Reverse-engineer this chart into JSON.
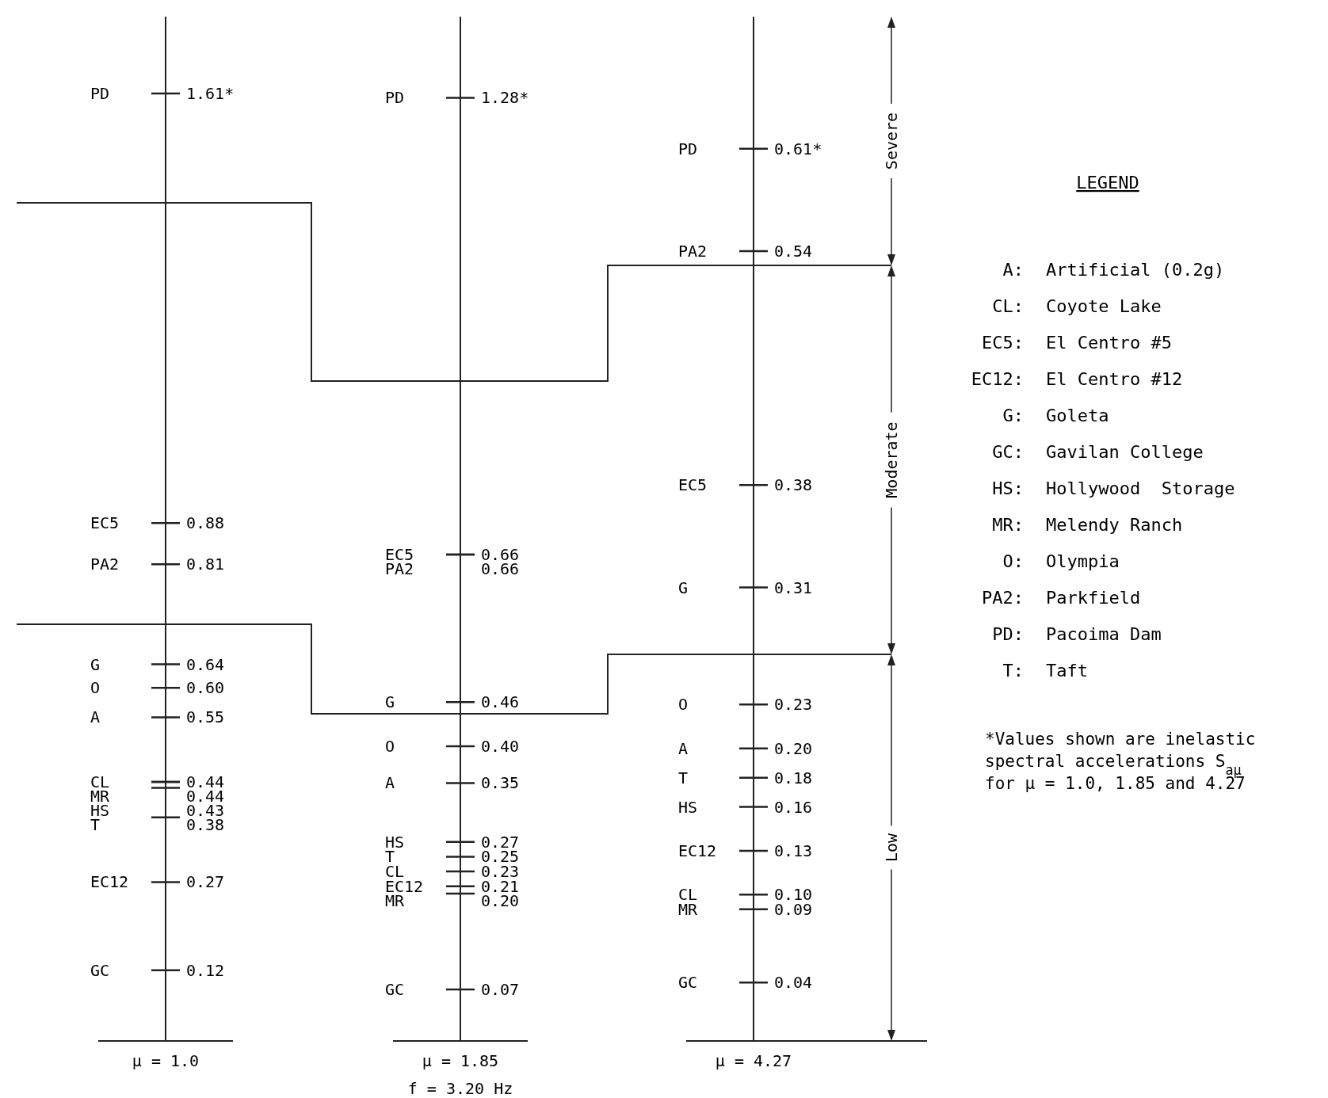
{
  "chart_data": [
    {
      "type": "other",
      "xlabel": "μ = 1.0",
      "categories": [
        "PD",
        "EC5",
        "PA2",
        "G",
        "O",
        "A",
        "CL",
        "MR",
        "HS",
        "T",
        "EC12",
        "GC"
      ],
      "values": [
        1.61,
        0.88,
        0.81,
        0.64,
        0.6,
        0.55,
        0.44,
        0.44,
        0.43,
        0.38,
        0.27,
        0.12
      ],
      "value_labels": [
        "1.61*",
        "0.88",
        "0.81",
        "0.64",
        "0.60",
        "0.55",
        "0.44",
        "0.44",
        "0.43",
        "0.38",
        "0.27",
        "0.12"
      ]
    },
    {
      "type": "other",
      "xlabel": "μ = 1.85",
      "annotations": [
        "f = 3.20 Hz"
      ],
      "categories": [
        "PD",
        "EC5",
        "PA2",
        "G",
        "O",
        "A",
        "HS",
        "T",
        "CL",
        "EC12",
        "MR",
        "GC"
      ],
      "values": [
        1.28,
        0.66,
        0.66,
        0.46,
        0.4,
        0.35,
        0.27,
        0.25,
        0.23,
        0.21,
        0.2,
        0.07
      ],
      "value_labels": [
        "1.28*",
        "0.66",
        "0.66",
        "0.46",
        "0.40",
        "0.35",
        "0.27",
        "0.25",
        "0.23",
        "0.21",
        "0.20",
        "0.07"
      ]
    },
    {
      "type": "other",
      "xlabel": "μ = 4.27",
      "annotations": [
        "Severe",
        "Moderate",
        "Low"
      ],
      "categories": [
        "PD",
        "PA2",
        "EC5",
        "G",
        "O",
        "A",
        "T",
        "HS",
        "EC12",
        "CL",
        "MR",
        "GC"
      ],
      "values": [
        0.61,
        0.54,
        0.38,
        0.31,
        0.23,
        0.2,
        0.18,
        0.16,
        0.13,
        0.1,
        0.09,
        0.04
      ],
      "value_labels": [
        "0.61*",
        "0.54",
        "0.38",
        "0.31",
        "0.23",
        "0.20",
        "0.18",
        "0.16",
        "0.13",
        "0.10",
        "0.09",
        "0.04"
      ]
    },
    {
      "type": "other",
      "title": "LEGEND",
      "annotations": [
        "A: Artificial (0.2g)",
        "CL: Coyote Lake",
        "EC5: El Centro #5",
        "EC12: El Centro #12",
        "G: Goleta",
        "GC: Gavilan College",
        "HS: Hollywood  Storage",
        "MR: Melendy Ranch",
        "O: Olympia",
        "PA2: Parkfield",
        "PD: Pacoima Dam",
        "T: Taft",
        "*Values shown are inelastic spectral accelerations S$_{aμ}$ for μ = 1.0, 1.85 and 4.27"
      ]
    }
  ]
}
